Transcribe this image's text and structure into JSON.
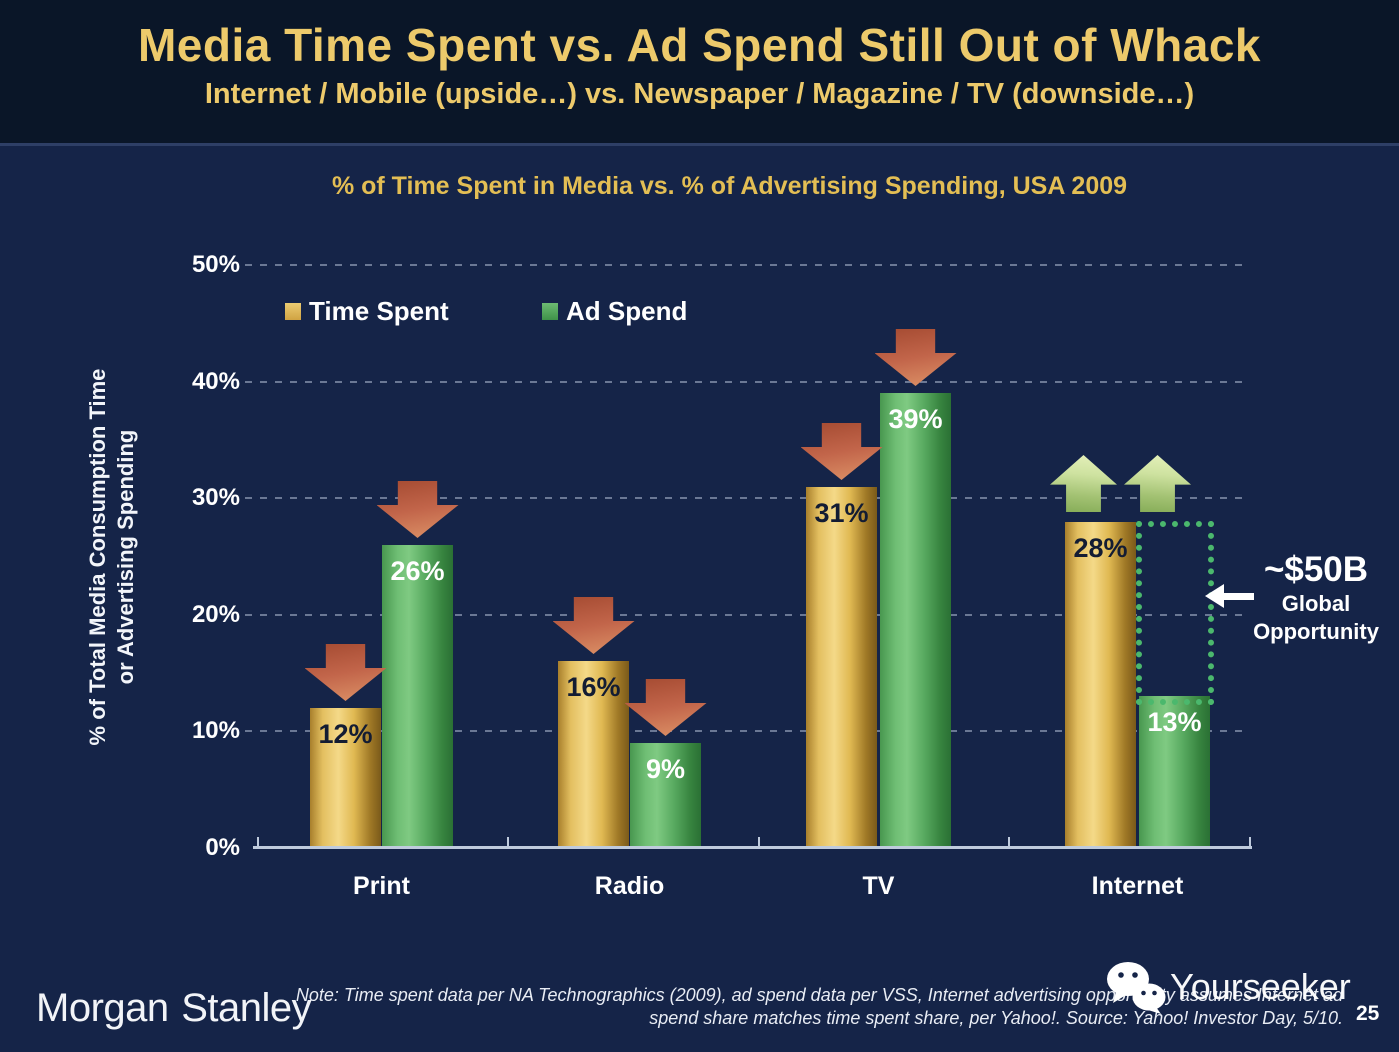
{
  "slide": {
    "title": "Media Time Spent vs. Ad Spend Still Out of Whack",
    "subtitle": "Internet / Mobile (upside…) vs. Newspaper / Magazine / TV (downside…)",
    "page_number": "25"
  },
  "chart_data": {
    "type": "bar",
    "title": "% of Time Spent in Media vs. % of Advertising Spending, USA 2009",
    "ylabel_line1": "% of Total Media Consumption Time",
    "ylabel_line2": "or Advertising Spending",
    "categories": [
      "Print",
      "Radio",
      "TV",
      "Internet"
    ],
    "series": [
      {
        "name": "Time Spent",
        "color": "#D9B04F",
        "values": [
          12,
          16,
          31,
          28
        ]
      },
      {
        "name": "Ad Spend",
        "color": "#4CA456",
        "values": [
          26,
          9,
          39,
          13
        ]
      }
    ],
    "ylim": [
      0,
      50
    ],
    "yticks": [
      "0%",
      "10%",
      "20%",
      "30%",
      "40%",
      "50%"
    ],
    "grid": "dotted horizontal gridlines at 10%-50%",
    "legend_position": "top-left inside plot",
    "annotations": {
      "trend": {
        "Print": "down",
        "Radio": "down",
        "TV": "down",
        "Internet": "up"
      },
      "trend_arrow_color_down": "#C2654A",
      "trend_arrow_color_up": "#B5D287",
      "opportunity_box": {
        "top_value": 28,
        "bottom_value": 13,
        "border_color": "#4BB86D",
        "label_big": "~$50B",
        "label_line2": "Global",
        "label_line3": "Opportunity"
      }
    }
  },
  "footer": {
    "logo": "Morgan Stanley",
    "note_line1": "Note: Time spent data per NA Technographics (2009), ad spend data per VSS, Internet advertising opportunity assumes Internet ad",
    "note_line2": "spend share matches time spent share, per Yahoo!. Source: Yahoo! Investor Day, 5/10.",
    "watermark": "Yourseeker"
  },
  "colors": {
    "background_top": "#0A1628",
    "background_main": "#152448",
    "title_gold": "#EDCA6B",
    "chart_title_gold": "#E3BE54",
    "axis": "#BFCBDD",
    "bar_label_dark": "#131C33",
    "bar_label_light": "#FFFFFF"
  }
}
